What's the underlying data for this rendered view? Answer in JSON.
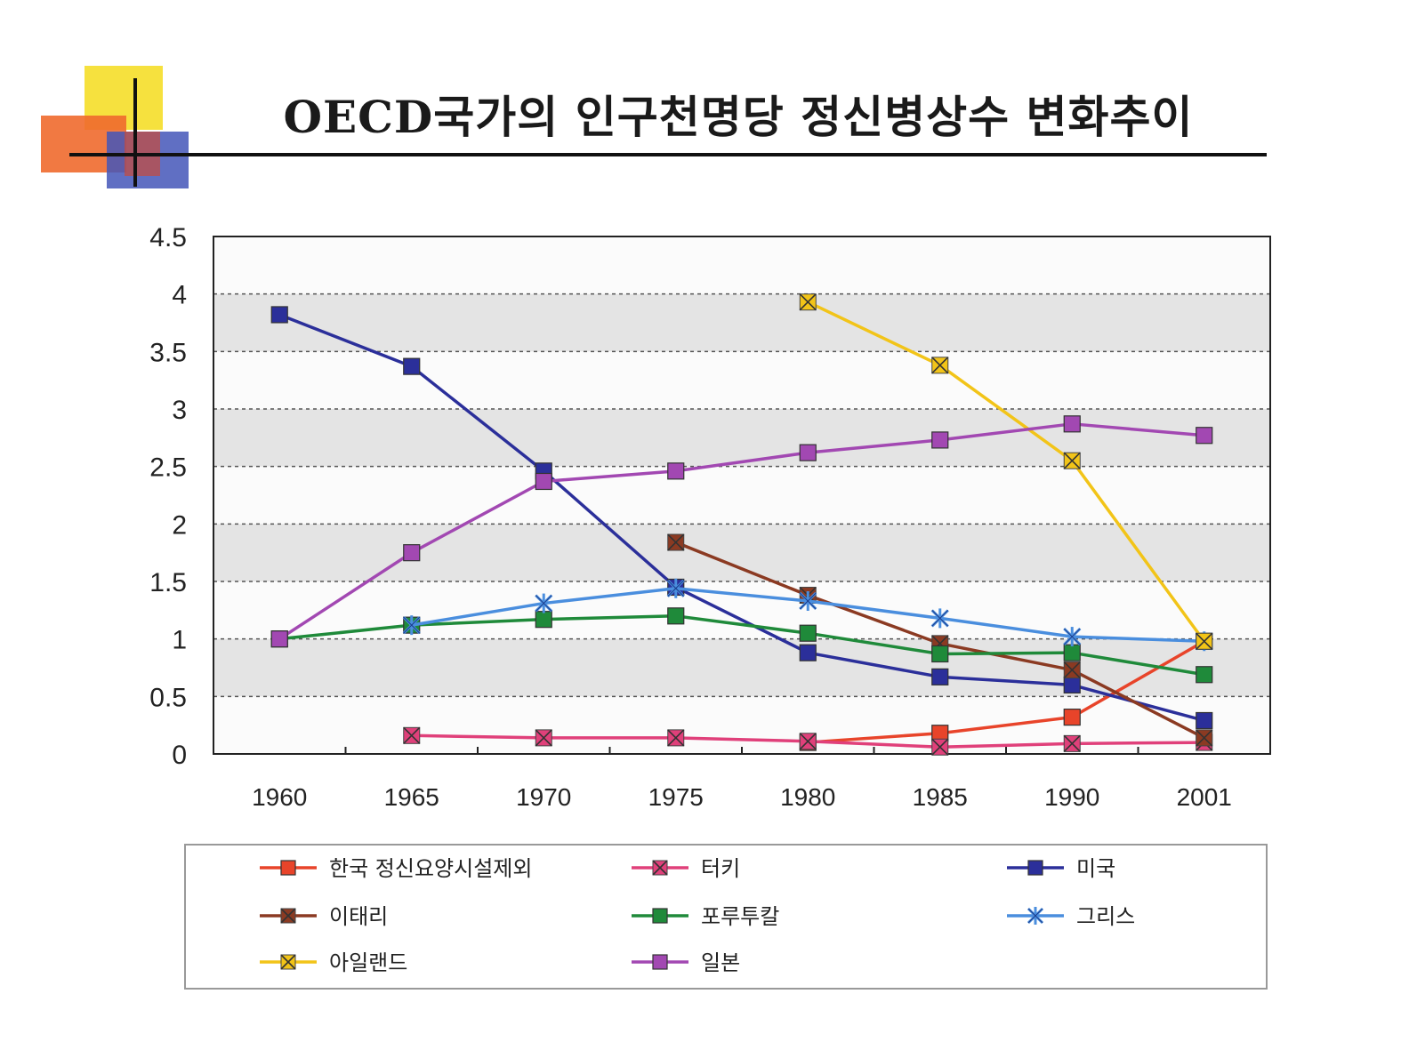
{
  "title": "OECD국가의 인구천명당 정신병상수 변화추이",
  "chart_data": {
    "type": "line",
    "title": "OECD국가의 인구천명당 정신병상수 변화추이",
    "xlabel": "",
    "ylabel": "",
    "categories": [
      "1960",
      "1965",
      "1970",
      "1975",
      "1980",
      "1985",
      "1990",
      "2001"
    ],
    "ylim": [
      0,
      4.5
    ],
    "yticks": [
      "0",
      "0.5",
      "1",
      "1.5",
      "2",
      "2.5",
      "3",
      "3.5",
      "4",
      "4.5"
    ],
    "grid": true,
    "legend_position": "bottom",
    "series": [
      {
        "name": "한국 정신요양시설제외",
        "color": "#e8442a",
        "marker": "square",
        "values": [
          null,
          null,
          null,
          null,
          0.1,
          0.18,
          0.32,
          0.98
        ]
      },
      {
        "name": "터키",
        "color": "#e0407a",
        "marker": "x",
        "values": [
          null,
          0.16,
          0.14,
          0.14,
          0.11,
          0.06,
          0.09,
          0.1
        ]
      },
      {
        "name": "미국",
        "color": "#2b2f9a",
        "marker": "square",
        "values": [
          3.82,
          3.37,
          2.46,
          1.45,
          0.88,
          0.67,
          0.6,
          0.29
        ]
      },
      {
        "name": "이태리",
        "color": "#8b3a22",
        "marker": "x",
        "values": [
          null,
          null,
          null,
          1.84,
          1.38,
          0.96,
          0.73,
          0.14
        ]
      },
      {
        "name": "포루투칼",
        "color": "#1f8a3a",
        "marker": "square",
        "values": [
          1.0,
          1.12,
          1.17,
          1.2,
          1.05,
          0.87,
          0.88,
          0.69
        ]
      },
      {
        "name": "그리스",
        "color": "#4a8ede",
        "marker": "star",
        "values": [
          null,
          1.12,
          1.31,
          1.44,
          1.33,
          1.18,
          1.02,
          0.98
        ]
      },
      {
        "name": "아일랜드",
        "color": "#f2c418",
        "marker": "x",
        "values": [
          null,
          null,
          null,
          null,
          3.93,
          3.38,
          2.55,
          0.98
        ]
      },
      {
        "name": "일본",
        "color": "#a248b2",
        "marker": "square",
        "values": [
          1.0,
          1.75,
          2.37,
          2.46,
          2.62,
          2.73,
          2.87,
          2.77
        ]
      }
    ]
  }
}
